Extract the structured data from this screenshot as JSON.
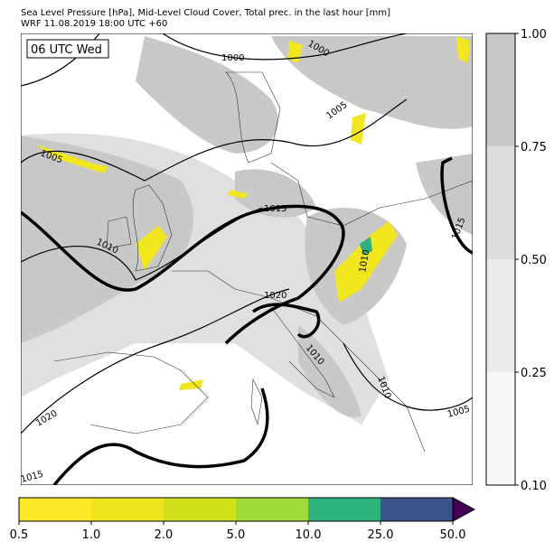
{
  "header": {
    "title": "Sea Level Pressure [hPa], Mid-Level Cloud Cover, Total prec. in the last hour [mm]",
    "subtitle": "WRF 11.08.2019 18:00 UTC +60"
  },
  "map": {
    "time_label": "06 UTC Wed",
    "isobar_labels": [
      "1000",
      "1000",
      "1005",
      "1005",
      "1015",
      "1010",
      "1020",
      "1010",
      "1010",
      "1010",
      "1005",
      "1020",
      "1015",
      "1015"
    ]
  },
  "cloud_colorbar": {
    "ticks": [
      "1.00",
      "0.75",
      "0.50",
      "0.25",
      "0.10"
    ],
    "colors": [
      "#c8c8c8",
      "#dcdcdc",
      "#ebebeb",
      "#f7f7f7"
    ]
  },
  "precip_colorbar": {
    "ticks": [
      "0.5",
      "1.0",
      "2.0",
      "5.0",
      "10.0",
      "25.0",
      "50.0"
    ],
    "colors": [
      "#fde725",
      "#efe51c",
      "#d0e11c",
      "#a0da39",
      "#2db27d",
      "#3b528b"
    ],
    "over_color": "#440154"
  }
}
